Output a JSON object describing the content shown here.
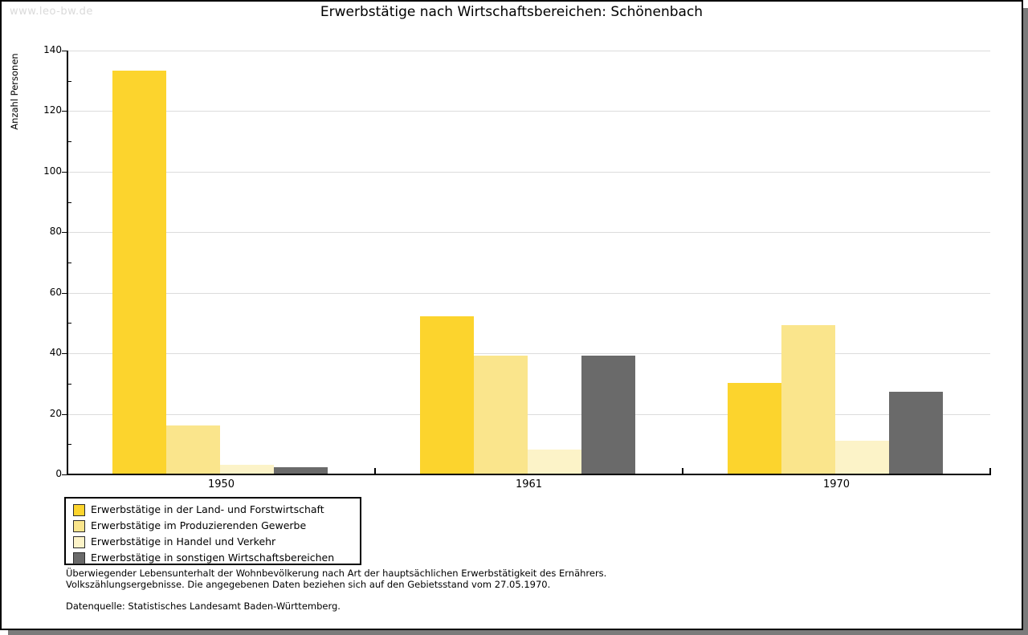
{
  "watermark": "www.leo-bw.de",
  "chart_data": {
    "type": "bar",
    "title": "Erwerbstätige nach Wirtschaftsbereichen: Schönenbach",
    "ylabel": "Anzahl Personen",
    "xlabel": "",
    "categories": [
      "1950",
      "1961",
      "1970"
    ],
    "series": [
      {
        "name": "Erwerbstätige in der Land- und Forstwirtschaft",
        "color": "#FCD42D",
        "values": [
          133,
          52,
          30
        ]
      },
      {
        "name": "Erwerbstätige im Produzierenden Gewerbe",
        "color": "#FAE58C",
        "values": [
          16,
          39,
          49
        ]
      },
      {
        "name": "Erwerbstätige in Handel und Verkehr",
        "color": "#FCF3C8",
        "values": [
          3,
          8,
          11
        ]
      },
      {
        "name": "Erwerbstätige in sonstigen Wirtschaftsbereichen",
        "color": "#6A6A6A",
        "values": [
          2,
          39,
          27
        ]
      }
    ],
    "ylim": [
      0,
      140
    ],
    "ytick_step": 20,
    "ytick_minor_step": 10,
    "grid": true,
    "legend_position": "bottom-left"
  },
  "footnotes": {
    "line1": "Überwiegender Lebensunterhalt der Wohnbevölkerung nach Art der hauptsächlichen Erwerbstätigkeit des Ernährers.",
    "line2": "Volkszählungsergebnisse. Die angegebenen Daten beziehen sich auf den Gebietsstand vom 27.05.1970.",
    "source": "Datenquelle: Statistisches Landesamt Baden-Württemberg."
  }
}
